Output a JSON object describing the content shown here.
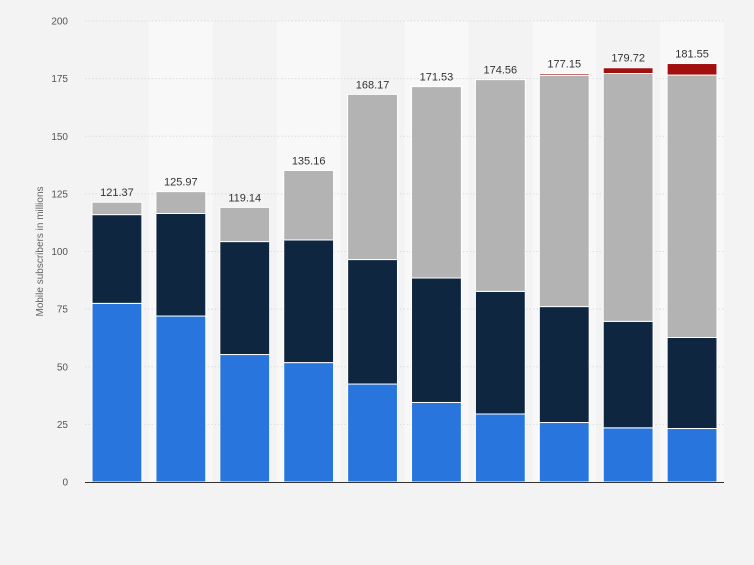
{
  "chart_data": {
    "type": "bar",
    "stacked": true,
    "title": "",
    "xlabel": "",
    "ylabel": "Mobile subscribers in millions",
    "ylim": [
      0,
      200
    ],
    "yticks": [
      0,
      25,
      50,
      75,
      100,
      125,
      150,
      175,
      200
    ],
    "categories": [
      "",
      "",
      "",
      "",
      "",
      "",
      "",
      "",
      "",
      ""
    ],
    "series": [
      {
        "color": "#2876dd",
        "values": [
          77.5,
          72.0,
          55.3,
          51.8,
          42.5,
          34.5,
          29.5,
          25.8,
          23.5,
          23.2
        ]
      },
      {
        "color": "#0f2640",
        "values": [
          38.5,
          44.5,
          49.0,
          53.2,
          54.0,
          54.0,
          53.2,
          50.3,
          46.2,
          39.5
        ]
      },
      {
        "color": "#b3b3b3",
        "values": [
          5.37,
          9.47,
          14.84,
          30.16,
          71.67,
          83.03,
          91.86,
          100.35,
          107.52,
          113.85
        ]
      },
      {
        "color": "#a30f0f",
        "values": [
          0,
          0,
          0,
          0,
          0,
          0,
          0,
          0.7,
          2.5,
          5.0
        ]
      }
    ],
    "totals": [
      "121.37",
      "125.97",
      "119.14",
      "135.16",
      "168.17",
      "171.53",
      "174.56",
      "177.15",
      "179.72",
      "181.55"
    ],
    "grid": true,
    "legend": "none"
  }
}
